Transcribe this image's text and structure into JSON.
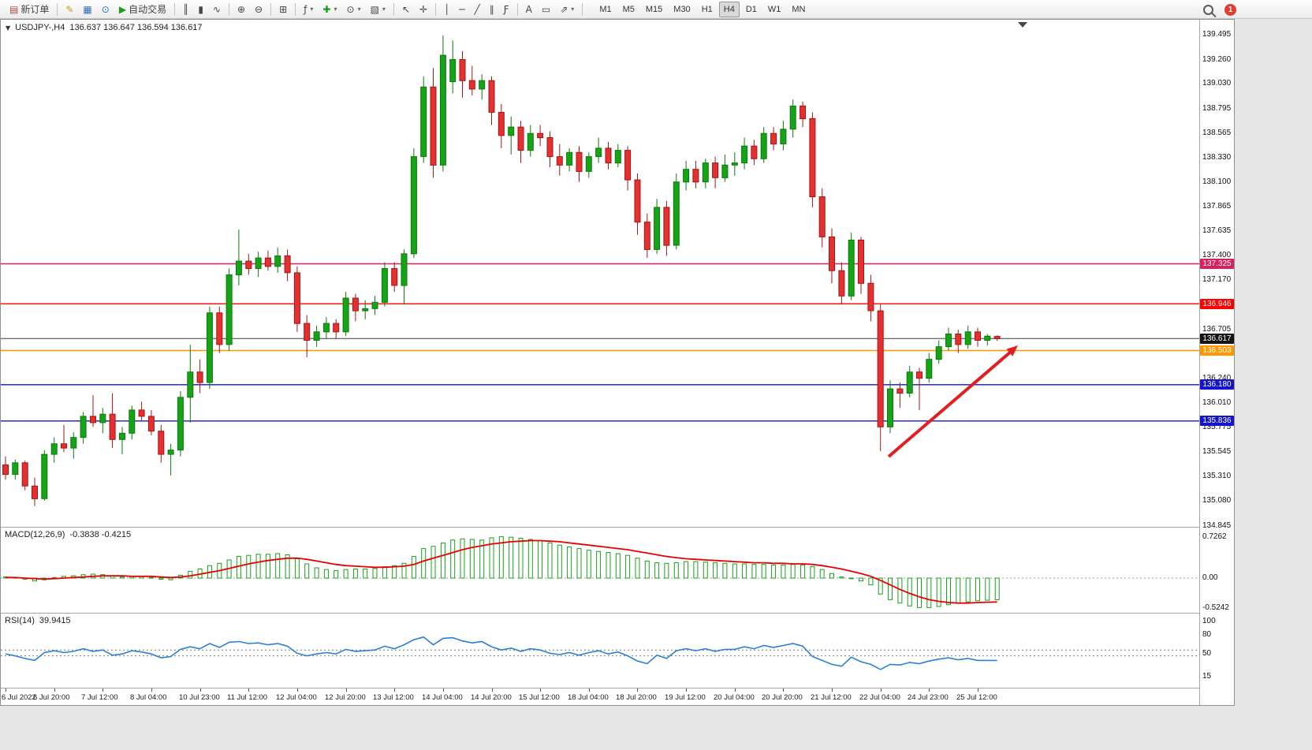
{
  "toolbar": {
    "dropdown_glyph": "▾",
    "notification_count": "1",
    "items": [
      {
        "name": "new-order-button",
        "glyph": "▤",
        "glyph_color": "#b04a3a",
        "label": "新订单"
      },
      {
        "separator": true
      },
      {
        "name": "metaeditor-button",
        "glyph": "✎",
        "glyph_color": "#c79a10"
      },
      {
        "name": "market-watch-button",
        "glyph": "▦",
        "glyph_color": "#2f6fb0"
      },
      {
        "name": "data-window-button",
        "glyph": "⊙",
        "glyph_color": "#2f6fb0"
      },
      {
        "name": "autotrading-button",
        "glyph": "▶",
        "glyph_color": "#18a018",
        "label": "自动交易"
      },
      {
        "separator": true
      },
      {
        "name": "bars-button",
        "glyph": "║"
      },
      {
        "name": "candles-button",
        "glyph": "▮"
      },
      {
        "name": "line-chart-button",
        "glyph": "∿"
      },
      {
        "separator": true
      },
      {
        "name": "zoom-in-button",
        "glyph": "⊕"
      },
      {
        "name": "zoom-out-button",
        "glyph": "⊖"
      },
      {
        "separator": true
      },
      {
        "name": "tile-windows-button",
        "glyph": "⊞"
      },
      {
        "separator": true
      },
      {
        "name": "indicators-button",
        "glyph": "ƒ",
        "dropdown": true
      },
      {
        "name": "add-indicator-button",
        "glyph": "✚",
        "glyph_color": "#12a012",
        "dropdown": true
      },
      {
        "name": "periods-button",
        "glyph": "⊙",
        "dropdown": true
      },
      {
        "name": "templates-button",
        "glyph": "▧",
        "dropdown": true
      },
      {
        "separator": true
      },
      {
        "name": "cursor-button",
        "glyph": "↖"
      },
      {
        "name": "crosshair-button",
        "glyph": "✛"
      },
      {
        "separator": true
      },
      {
        "name": "vertical-line-button",
        "glyph": "│"
      },
      {
        "name": "horizontal-line-button",
        "glyph": "─"
      },
      {
        "name": "trendline-button",
        "glyph": "╱"
      },
      {
        "name": "equidistant-channel-button",
        "glyph": "∥"
      },
      {
        "name": "fibonacci-button",
        "glyph": "Ƒ"
      },
      {
        "separator": true
      },
      {
        "name": "text-button",
        "glyph": "A"
      },
      {
        "name": "text-label-button",
        "glyph": "▭"
      },
      {
        "name": "arrows-button",
        "glyph": "⇗",
        "dropdown": true
      },
      {
        "separator": true
      }
    ],
    "timeframes": {
      "items": [
        "M1",
        "M5",
        "M15",
        "M30",
        "H1",
        "H4",
        "D1",
        "W1",
        "MN"
      ],
      "active": "H4"
    }
  },
  "chart": {
    "collapse_icon": "▼",
    "title": "USDJPY-,H4",
    "ohlc": "136.637 136.647 136.594 136.617"
  },
  "chart_data": {
    "type": "candlestick",
    "symbol": "USDJPY-",
    "timeframe": "H4",
    "current_bar": {
      "open": "136.637",
      "high": "136.647",
      "low": "136.594",
      "close": "136.617"
    },
    "colors": {
      "bull": "#17a317",
      "bull_border": "#0c7a0c",
      "bear": "#e33030",
      "bear_border": "#a81414"
    },
    "x_label_step": 5,
    "x_labels": [
      "6 Jul 2022",
      "6 Jul 20:00",
      "7 Jul 12:00",
      "8 Jul 04:00",
      "10 Jul 23:00",
      "11 Jul 12:00",
      "12 Jul 04:00",
      "12 Jul 20:00",
      "13 Jul 12:00",
      "14 Jul 04:00",
      "14 Jul 20:00",
      "15 Jul 12:00",
      "18 Jul 04:00",
      "18 Jul 20:00",
      "19 Jul 12:00",
      "20 Jul 04:00",
      "20 Jul 20:00",
      "21 Jul 12:00",
      "22 Jul 04:00",
      "24 Jul 23:00",
      "25 Jul 12:00"
    ],
    "candles": [
      [
        135.42,
        135.5,
        135.28,
        135.33
      ],
      [
        135.33,
        135.47,
        135.28,
        135.44
      ],
      [
        135.44,
        135.46,
        135.18,
        135.22
      ],
      [
        135.22,
        135.3,
        135.03,
        135.1
      ],
      [
        135.1,
        135.56,
        135.08,
        135.52
      ],
      [
        135.52,
        135.68,
        135.44,
        135.62
      ],
      [
        135.62,
        135.8,
        135.54,
        135.58
      ],
      [
        135.58,
        135.73,
        135.48,
        135.68
      ],
      [
        135.68,
        135.92,
        135.62,
        135.88
      ],
      [
        135.88,
        136.08,
        135.78,
        135.82
      ],
      [
        135.82,
        135.96,
        135.72,
        135.9
      ],
      [
        135.9,
        136.1,
        135.58,
        135.66
      ],
      [
        135.66,
        135.78,
        135.52,
        135.72
      ],
      [
        135.72,
        135.98,
        135.66,
        135.94
      ],
      [
        135.94,
        136.02,
        135.84,
        135.88
      ],
      [
        135.88,
        135.94,
        135.7,
        135.74
      ],
      [
        135.74,
        135.8,
        135.44,
        135.52
      ],
      [
        135.52,
        135.62,
        135.32,
        135.56
      ],
      [
        135.56,
        136.12,
        135.5,
        136.06
      ],
      [
        136.06,
        136.56,
        135.82,
        136.3
      ],
      [
        136.3,
        136.42,
        136.1,
        136.2
      ],
      [
        136.2,
        136.92,
        136.14,
        136.86
      ],
      [
        136.86,
        136.92,
        136.48,
        136.56
      ],
      [
        136.56,
        137.28,
        136.5,
        137.22
      ],
      [
        137.22,
        137.65,
        137.12,
        137.35
      ],
      [
        137.35,
        137.42,
        137.22,
        137.28
      ],
      [
        137.28,
        137.44,
        137.2,
        137.38
      ],
      [
        137.38,
        137.45,
        137.26,
        137.3
      ],
      [
        137.3,
        137.48,
        137.24,
        137.4
      ],
      [
        137.4,
        137.46,
        137.16,
        137.24
      ],
      [
        137.24,
        137.3,
        136.68,
        136.76
      ],
      [
        136.76,
        136.84,
        136.44,
        136.6
      ],
      [
        136.6,
        136.74,
        136.54,
        136.68
      ],
      [
        136.68,
        136.82,
        136.62,
        136.76
      ],
      [
        136.76,
        136.8,
        136.62,
        136.68
      ],
      [
        136.68,
        137.06,
        136.64,
        137.0
      ],
      [
        137.0,
        137.04,
        136.78,
        136.88
      ],
      [
        136.88,
        136.98,
        136.8,
        136.9
      ],
      [
        136.9,
        137.02,
        136.84,
        136.96
      ],
      [
        136.96,
        137.34,
        136.92,
        137.28
      ],
      [
        137.28,
        137.34,
        137.06,
        137.12
      ],
      [
        137.12,
        137.46,
        136.94,
        137.42
      ],
      [
        137.42,
        138.42,
        137.38,
        138.34
      ],
      [
        138.34,
        139.1,
        138.28,
        139.0
      ],
      [
        139.0,
        139.18,
        138.14,
        138.26
      ],
      [
        138.26,
        139.49,
        138.2,
        139.3
      ],
      [
        139.05,
        139.44,
        138.94,
        139.26
      ],
      [
        139.26,
        139.34,
        138.9,
        139.06
      ],
      [
        139.06,
        139.2,
        138.92,
        138.98
      ],
      [
        138.98,
        139.12,
        138.88,
        139.06
      ],
      [
        139.06,
        139.1,
        138.64,
        138.76
      ],
      [
        138.76,
        138.84,
        138.42,
        138.54
      ],
      [
        138.54,
        138.72,
        138.36,
        138.62
      ],
      [
        138.62,
        138.68,
        138.28,
        138.4
      ],
      [
        138.4,
        138.64,
        138.34,
        138.56
      ],
      [
        138.56,
        138.64,
        138.44,
        138.52
      ],
      [
        138.52,
        138.58,
        138.24,
        138.34
      ],
      [
        138.34,
        138.46,
        138.16,
        138.26
      ],
      [
        138.26,
        138.42,
        138.2,
        138.38
      ],
      [
        138.38,
        138.44,
        138.1,
        138.2
      ],
      [
        138.2,
        138.38,
        138.14,
        138.34
      ],
      [
        138.34,
        138.52,
        138.28,
        138.42
      ],
      [
        138.42,
        138.48,
        138.22,
        138.28
      ],
      [
        138.28,
        138.46,
        138.24,
        138.4
      ],
      [
        138.4,
        138.44,
        138.02,
        138.12
      ],
      [
        138.12,
        138.18,
        137.6,
        137.72
      ],
      [
        137.72,
        137.8,
        137.38,
        137.46
      ],
      [
        137.46,
        137.94,
        137.42,
        137.86
      ],
      [
        137.86,
        137.92,
        137.4,
        137.5
      ],
      [
        137.5,
        138.18,
        137.46,
        138.1
      ],
      [
        138.1,
        138.3,
        138.02,
        138.22
      ],
      [
        138.22,
        138.3,
        138.04,
        138.1
      ],
      [
        138.1,
        138.32,
        138.04,
        138.28
      ],
      [
        138.28,
        138.34,
        138.04,
        138.14
      ],
      [
        138.14,
        138.36,
        138.1,
        138.26
      ],
      [
        138.26,
        138.38,
        138.16,
        138.28
      ],
      [
        138.28,
        138.52,
        138.22,
        138.44
      ],
      [
        138.44,
        138.5,
        138.26,
        138.32
      ],
      [
        138.32,
        138.62,
        138.28,
        138.56
      ],
      [
        138.56,
        138.62,
        138.4,
        138.46
      ],
      [
        138.46,
        138.68,
        138.4,
        138.6
      ],
      [
        138.6,
        138.88,
        138.52,
        138.82
      ],
      [
        138.82,
        138.86,
        138.62,
        138.7
      ],
      [
        138.7,
        138.76,
        137.86,
        137.96
      ],
      [
        137.96,
        138.04,
        137.48,
        137.58
      ],
      [
        137.58,
        137.66,
        137.14,
        137.26
      ],
      [
        137.26,
        137.34,
        136.94,
        137.02
      ],
      [
        137.02,
        137.62,
        136.98,
        137.55
      ],
      [
        137.55,
        137.58,
        137.04,
        137.14
      ],
      [
        137.14,
        137.22,
        136.78,
        136.88
      ],
      [
        136.88,
        136.94,
        135.55,
        135.78
      ],
      [
        135.78,
        136.22,
        135.72,
        136.14
      ],
      [
        136.14,
        136.2,
        135.96,
        136.1
      ],
      [
        136.1,
        136.36,
        136.06,
        136.3
      ],
      [
        136.3,
        136.34,
        135.94,
        136.24
      ],
      [
        136.24,
        136.48,
        136.2,
        136.42
      ],
      [
        136.42,
        136.6,
        136.38,
        136.54
      ],
      [
        136.54,
        136.72,
        136.5,
        136.66
      ],
      [
        136.66,
        136.7,
        136.48,
        136.56
      ],
      [
        136.56,
        136.74,
        136.52,
        136.68
      ],
      [
        136.68,
        136.72,
        136.54,
        136.6
      ],
      [
        136.6,
        136.66,
        136.55,
        136.64
      ],
      [
        136.637,
        136.647,
        136.594,
        136.617
      ]
    ],
    "hlines": [
      {
        "price": 137.325,
        "color": "#d6225a",
        "label": "137.325",
        "width": 1.4
      },
      {
        "price": 136.946,
        "color": "#ff0000",
        "label": "136.946",
        "width": 1.4
      },
      {
        "price": 136.617,
        "color": "#3c3c3c",
        "label": "136.617",
        "width": 1
      },
      {
        "price": 136.503,
        "color": "#ff9800",
        "label": "136.503",
        "width": 1.6
      },
      {
        "price": 136.18,
        "color": "#1414cc",
        "label": "136.180",
        "width": 1.4
      },
      {
        "price": 135.836,
        "color": "#1414cc",
        "label": "135.836",
        "width": 1.4
      }
    ],
    "price_axis": {
      "labels": [
        "139.495",
        "139.260",
        "139.030",
        "138.795",
        "138.565",
        "138.330",
        "138.100",
        "137.865",
        "137.635",
        "137.400",
        "137.170",
        "136.705",
        "136.240",
        "136.010",
        "135.775",
        "135.545",
        "135.310",
        "135.080",
        "134.845"
      ],
      "badges": [
        {
          "value": "137.325",
          "color": "#d6225a"
        },
        {
          "value": "136.946",
          "color": "#ff0000"
        },
        {
          "value": "136.617",
          "color": "#151515"
        },
        {
          "value": "136.503",
          "color": "#ff9800"
        },
        {
          "value": "136.180",
          "color": "#1414cc"
        },
        {
          "value": "135.836",
          "color": "#1414cc"
        }
      ]
    },
    "macd": {
      "label": "MACD(12,26,9)",
      "values": "-0.3838 -0.4215",
      "scale": [
        "0.7262",
        "0.00",
        "-0.5242"
      ],
      "hist_color": "#18a018",
      "signal_color": "#e80000",
      "histogram": [
        0.02,
        0.01,
        -0.02,
        -0.05,
        -0.03,
        0.01,
        0.03,
        0.04,
        0.06,
        0.07,
        0.06,
        0.04,
        0.02,
        0.03,
        0.03,
        0.01,
        -0.02,
        -0.03,
        0.05,
        0.12,
        0.16,
        0.22,
        0.26,
        0.32,
        0.38,
        0.4,
        0.42,
        0.42,
        0.43,
        0.41,
        0.34,
        0.25,
        0.18,
        0.15,
        0.13,
        0.15,
        0.16,
        0.16,
        0.17,
        0.2,
        0.22,
        0.26,
        0.38,
        0.52,
        0.56,
        0.62,
        0.67,
        0.69,
        0.68,
        0.67,
        0.71,
        0.73,
        0.72,
        0.7,
        0.68,
        0.66,
        0.62,
        0.58,
        0.55,
        0.52,
        0.49,
        0.47,
        0.45,
        0.43,
        0.4,
        0.35,
        0.3,
        0.27,
        0.26,
        0.27,
        0.29,
        0.29,
        0.28,
        0.27,
        0.26,
        0.25,
        0.25,
        0.24,
        0.24,
        0.23,
        0.23,
        0.24,
        0.23,
        0.2,
        0.15,
        0.08,
        0.02,
        0.0,
        -0.05,
        -0.12,
        -0.28,
        -0.38,
        -0.44,
        -0.49,
        -0.52,
        -0.52,
        -0.5,
        -0.47,
        -0.44,
        -0.42,
        -0.4,
        -0.39,
        -0.3838
      ],
      "signal": [
        0.01,
        0.01,
        0.0,
        -0.01,
        -0.02,
        -0.01,
        0.0,
        0.01,
        0.02,
        0.03,
        0.04,
        0.04,
        0.04,
        0.03,
        0.03,
        0.03,
        0.02,
        0.01,
        0.02,
        0.04,
        0.07,
        0.1,
        0.13,
        0.17,
        0.21,
        0.25,
        0.28,
        0.31,
        0.33,
        0.35,
        0.35,
        0.33,
        0.3,
        0.27,
        0.24,
        0.22,
        0.21,
        0.2,
        0.19,
        0.19,
        0.2,
        0.21,
        0.24,
        0.3,
        0.35,
        0.4,
        0.45,
        0.5,
        0.54,
        0.57,
        0.6,
        0.62,
        0.64,
        0.65,
        0.66,
        0.66,
        0.65,
        0.64,
        0.62,
        0.6,
        0.58,
        0.56,
        0.54,
        0.52,
        0.5,
        0.47,
        0.44,
        0.41,
        0.38,
        0.36,
        0.34,
        0.33,
        0.32,
        0.31,
        0.3,
        0.29,
        0.28,
        0.27,
        0.27,
        0.26,
        0.26,
        0.25,
        0.25,
        0.24,
        0.22,
        0.19,
        0.16,
        0.12,
        0.08,
        0.03,
        -0.04,
        -0.12,
        -0.2,
        -0.27,
        -0.33,
        -0.38,
        -0.41,
        -0.43,
        -0.44,
        -0.44,
        -0.43,
        -0.425,
        -0.4215
      ]
    },
    "rsi": {
      "label": "RSI(14)",
      "value": "39.9415",
      "scale": [
        "100",
        "80",
        "50",
        "15"
      ],
      "levels": [
        56,
        47
      ],
      "line_color": "#2b7fd4",
      "values": [
        50,
        47,
        43,
        40,
        52,
        55,
        52,
        54,
        58,
        54,
        56,
        48,
        50,
        55,
        53,
        50,
        44,
        46,
        57,
        61,
        58,
        66,
        60,
        68,
        69,
        66,
        67,
        64,
        66,
        62,
        51,
        47,
        50,
        52,
        50,
        57,
        54,
        55,
        56,
        62,
        58,
        64,
        72,
        76,
        64,
        74,
        75,
        70,
        67,
        69,
        61,
        56,
        59,
        54,
        58,
        56,
        51,
        49,
        52,
        48,
        52,
        55,
        50,
        53,
        47,
        39,
        35,
        48,
        43,
        55,
        58,
        55,
        58,
        54,
        57,
        57,
        61,
        58,
        63,
        60,
        63,
        66,
        62,
        46,
        40,
        34,
        31,
        45,
        38,
        34,
        26,
        34,
        33,
        37,
        35,
        39,
        42,
        44,
        41,
        43,
        40,
        40,
        39.94
      ]
    },
    "annotation_arrow": {
      "color": "#e02020",
      "direction": "up-right"
    }
  }
}
